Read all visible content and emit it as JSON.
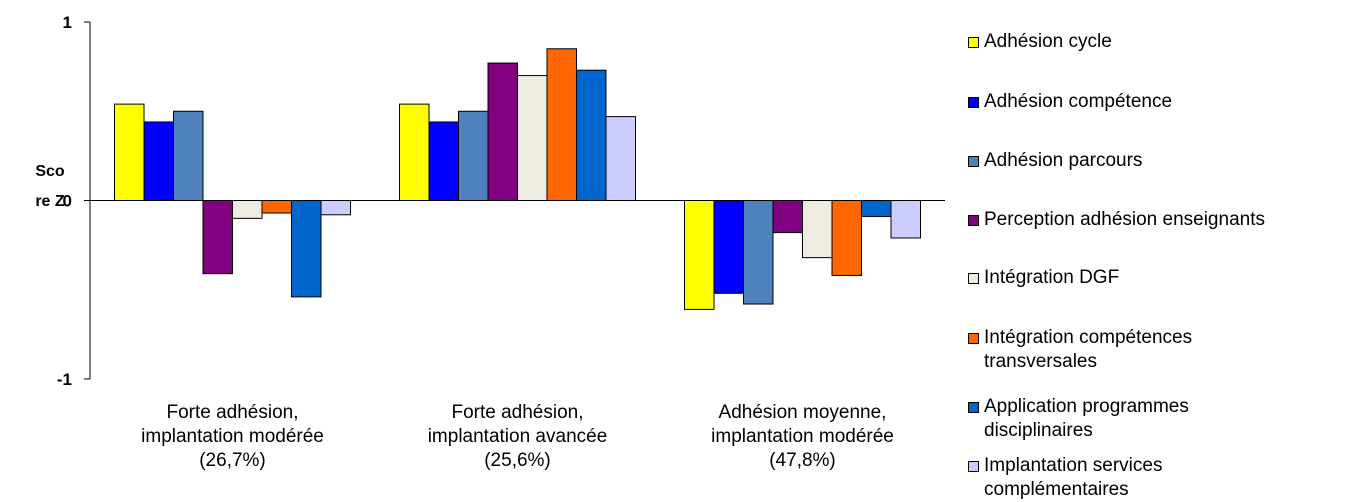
{
  "chart_data": {
    "type": "bar",
    "ylabel": "Score Z",
    "ylim": [
      -1,
      1
    ],
    "y_ticks": [
      "1",
      "0",
      "-1"
    ],
    "grid": false,
    "legend_position": "right",
    "categories": [
      "Forte adhésion,\nimplantation modérée\n(26,7%)",
      "Forte adhésion,\nimplantation avancée\n(25,6%)",
      "Adhésion moyenne,\nimplantation modérée\n(47,8%)"
    ],
    "series": [
      {
        "name": "Adhésion cycle",
        "color": "#ffff00",
        "values": [
          0.54,
          0.54,
          -0.61
        ]
      },
      {
        "name": "Adhésion compétence",
        "color": "#0000ff",
        "values": [
          0.44,
          0.44,
          -0.52
        ]
      },
      {
        "name": "Adhésion parcours",
        "color": "#4f81bd",
        "values": [
          0.5,
          0.5,
          -0.58
        ]
      },
      {
        "name": "Perception adhésion enseignants",
        "color": "#800080",
        "values": [
          -0.41,
          0.77,
          -0.18
        ]
      },
      {
        "name": "Intégration DGF",
        "color": "#eeece1",
        "values": [
          -0.1,
          0.7,
          -0.32
        ]
      },
      {
        "name": "Intégration compétences transversales",
        "color": "#ff6600",
        "values": [
          -0.07,
          0.85,
          -0.42
        ]
      },
      {
        "name": "Application programmes disciplinaires",
        "color": "#0066cc",
        "values": [
          -0.54,
          0.73,
          -0.09
        ]
      },
      {
        "name": "Implantation services complémentaires",
        "color": "#ccccff",
        "values": [
          -0.08,
          0.47,
          -0.21
        ]
      }
    ]
  }
}
